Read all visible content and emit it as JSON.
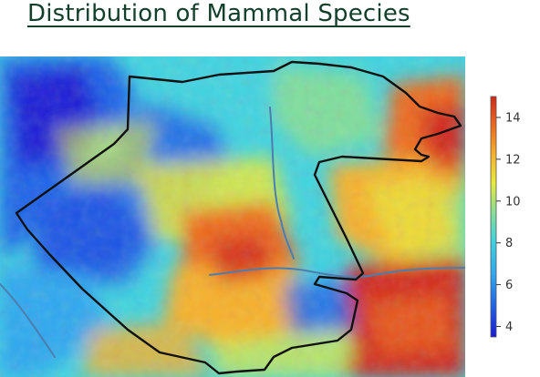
{
  "page": {
    "title": "Distribution of Mammal Species"
  },
  "colors": {
    "title": "#12402a",
    "boundary": "#111111",
    "river": "#4a7fb0",
    "scale": [
      "#1a1ad6",
      "#1f63e8",
      "#2fa8ef",
      "#3fd3e0",
      "#8fe08c",
      "#e8ea3a",
      "#f7b12a",
      "#ee6a1d",
      "#d2281a"
    ]
  },
  "legend": {
    "min": 3.5,
    "max": 15,
    "ticks": [
      {
        "value": 14,
        "label": "14"
      },
      {
        "value": 12,
        "label": "12"
      },
      {
        "value": 10,
        "label": "10"
      },
      {
        "value": 8,
        "label": "8"
      },
      {
        "value": 6,
        "label": "6"
      },
      {
        "value": 4,
        "label": "4"
      }
    ]
  }
}
